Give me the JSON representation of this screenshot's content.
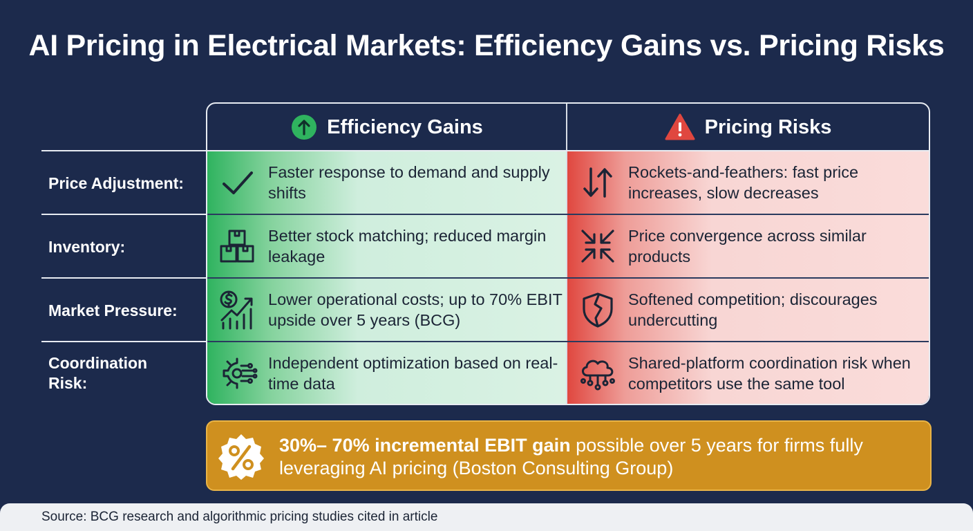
{
  "title": "AI Pricing in Electrical Markets: Efficiency Gains vs. Pricing Risks",
  "columns": {
    "gain": {
      "label": "Efficiency Gains",
      "icon": "arrow-up-circle-icon",
      "color": "#2fb35f"
    },
    "risk": {
      "label": "Pricing Risks",
      "icon": "warning-triangle-icon",
      "color": "#e0473f"
    }
  },
  "rows": [
    {
      "label": "Price Adjustment:",
      "gain": {
        "icon": "checkmark-icon",
        "text": "Faster response to demand and supply shifts"
      },
      "risk": {
        "icon": "up-down-arrows-icon",
        "text": "Rockets-and-feathers: fast price increases, slow decreases"
      }
    },
    {
      "label": "Inventory:",
      "gain": {
        "icon": "boxes-icon",
        "text": "Better stock matching; reduced margin leakage"
      },
      "risk": {
        "icon": "converging-arrows-icon",
        "text": "Price convergence across similar products"
      }
    },
    {
      "label": "Market Pressure:",
      "gain": {
        "icon": "dollar-growth-chart-icon",
        "text": "Lower operational costs; up to 70% EBIT upside over 5 years (BCG)"
      },
      "risk": {
        "icon": "broken-shield-icon",
        "text": "Softened competition; discourages undercutting"
      }
    },
    {
      "label": "Coordination Risk:",
      "gain": {
        "icon": "gear-circuit-icon",
        "text": "Independent optimization based on real-time data"
      },
      "risk": {
        "icon": "cloud-network-icon",
        "text": "Shared-platform coordination risk when competitors use the same tool"
      }
    }
  ],
  "banner": {
    "icon": "percent-badge-icon",
    "bold_text": "30%– 70% incremental EBIT gain",
    "rest_text": " possible over 5 years for firms fully leveraging AI pricing (Boston Consulting Group)",
    "color": "#cf901f"
  },
  "footer": "Source: BCG research and algorithmic pricing studies cited in article"
}
